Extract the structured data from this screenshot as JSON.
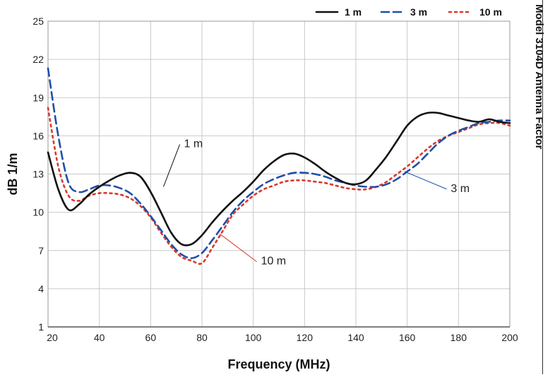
{
  "chart_data": {
    "type": "line",
    "title": "Model 3104D Antenna Factor",
    "xlabel": "Frequency (MHz)",
    "ylabel": "dB 1/m",
    "xlim": [
      20,
      200
    ],
    "ylim": [
      1,
      25
    ],
    "xticks": [
      20,
      40,
      60,
      80,
      100,
      120,
      140,
      160,
      180,
      200
    ],
    "yticks": [
      1,
      4,
      7,
      10,
      13,
      16,
      19,
      22,
      25
    ],
    "grid": true,
    "legend": "top-right",
    "series": [
      {
        "name": "1 m",
        "color": "#111111",
        "dash": "solid",
        "x": [
          20,
          24,
          28,
          32,
          36,
          40,
          44,
          48,
          52,
          56,
          60,
          64,
          68,
          72,
          76,
          80,
          84,
          88,
          92,
          96,
          100,
          104,
          108,
          112,
          116,
          120,
          124,
          128,
          132,
          136,
          140,
          144,
          148,
          152,
          156,
          160,
          164,
          168,
          172,
          176,
          180,
          184,
          188,
          192,
          196,
          200
        ],
        "y": [
          14.7,
          11.8,
          10.2,
          10.6,
          11.4,
          12.0,
          12.5,
          12.9,
          13.1,
          12.8,
          11.6,
          10.0,
          8.4,
          7.5,
          7.5,
          8.2,
          9.2,
          10.1,
          10.9,
          11.6,
          12.4,
          13.3,
          14.0,
          14.5,
          14.6,
          14.3,
          13.8,
          13.2,
          12.7,
          12.3,
          12.2,
          12.5,
          13.4,
          14.4,
          15.6,
          16.8,
          17.5,
          17.8,
          17.8,
          17.6,
          17.4,
          17.2,
          17.1,
          17.3,
          17.1,
          17.0
        ]
      },
      {
        "name": "3 m",
        "color": "#1f4fa8",
        "dash": "dashed",
        "x": [
          20,
          24,
          28,
          32,
          36,
          40,
          44,
          48,
          52,
          56,
          60,
          64,
          68,
          72,
          76,
          80,
          84,
          88,
          92,
          96,
          100,
          104,
          108,
          112,
          116,
          120,
          124,
          128,
          132,
          136,
          140,
          144,
          148,
          152,
          156,
          160,
          164,
          168,
          172,
          176,
          180,
          184,
          188,
          192,
          196,
          200
        ],
        "y": [
          21.3,
          16.0,
          12.3,
          11.6,
          11.8,
          12.1,
          12.1,
          11.9,
          11.5,
          10.7,
          9.7,
          8.6,
          7.5,
          6.7,
          6.4,
          6.8,
          7.8,
          8.9,
          10.0,
          10.9,
          11.6,
          12.2,
          12.6,
          12.9,
          13.1,
          13.1,
          13.0,
          12.8,
          12.5,
          12.3,
          12.1,
          12.0,
          12.0,
          12.2,
          12.6,
          13.2,
          13.8,
          14.6,
          15.4,
          16.0,
          16.4,
          16.7,
          17.0,
          17.1,
          17.2,
          17.2
        ]
      },
      {
        "name": "10 m",
        "color": "#d8392b",
        "dash": "dotted",
        "x": [
          20,
          24,
          28,
          32,
          36,
          40,
          44,
          48,
          52,
          56,
          60,
          64,
          68,
          72,
          76,
          80,
          84,
          88,
          92,
          96,
          100,
          104,
          108,
          112,
          116,
          120,
          124,
          128,
          132,
          136,
          140,
          144,
          148,
          152,
          156,
          160,
          164,
          168,
          172,
          176,
          180,
          184,
          188,
          192,
          196,
          200
        ],
        "y": [
          18.2,
          13.6,
          11.3,
          10.9,
          11.3,
          11.5,
          11.5,
          11.4,
          11.1,
          10.5,
          9.6,
          8.4,
          7.3,
          6.5,
          6.2,
          6.0,
          7.2,
          8.5,
          9.8,
          10.6,
          11.3,
          11.8,
          12.1,
          12.4,
          12.5,
          12.5,
          12.4,
          12.3,
          12.1,
          11.9,
          11.8,
          11.8,
          12.0,
          12.4,
          13.0,
          13.6,
          14.3,
          15.0,
          15.6,
          16.0,
          16.3,
          16.6,
          16.9,
          17.0,
          17.0,
          16.8
        ]
      }
    ],
    "annotations": [
      {
        "text": "1 m",
        "series": "1 m",
        "at_x": 65,
        "at_y": 12.0,
        "label_x": 73,
        "label_y": 15.1
      },
      {
        "text": "3 m",
        "series": "3 m",
        "at_x": 159,
        "at_y": 13.2,
        "label_x": 177,
        "label_y": 11.6
      },
      {
        "text": "10 m",
        "series": "10 m",
        "at_x": 87,
        "at_y": 8.3,
        "label_x": 103,
        "label_y": 5.9
      }
    ]
  }
}
